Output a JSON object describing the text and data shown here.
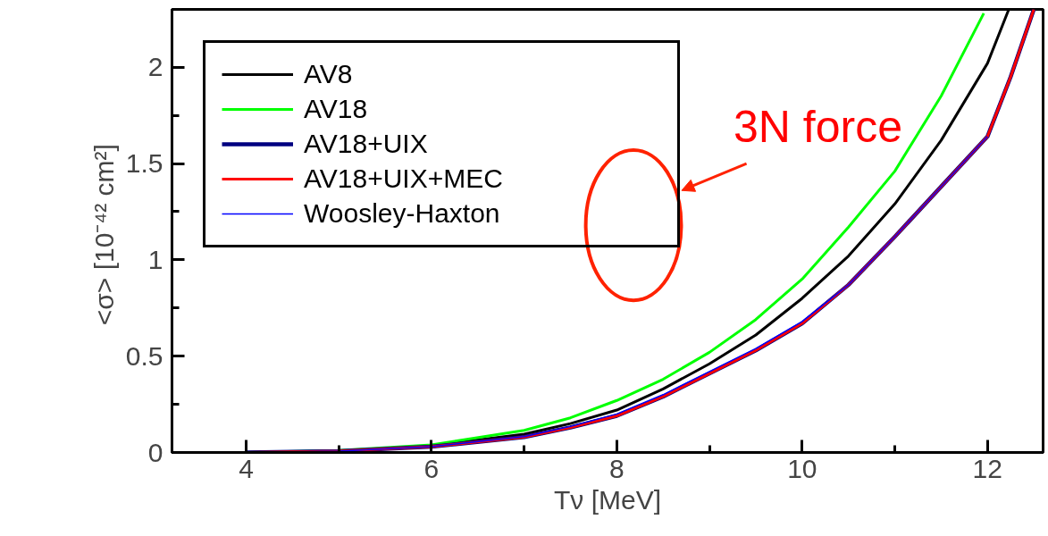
{
  "chart_data": {
    "type": "line",
    "xlabel": "Tν [MeV]",
    "ylabel": "<σ>  [10⁻⁴² cm²]",
    "xlim": [
      3.2,
      12.6
    ],
    "ylim": [
      0,
      2.3
    ],
    "xticks": [
      4,
      {
        "value": 5,
        "label": null
      },
      6,
      {
        "value": 7,
        "label": null
      },
      8,
      {
        "value": 9,
        "label": null
      },
      10,
      {
        "value": 11,
        "label": null
      },
      12
    ],
    "yticks": [
      0,
      {
        "value": 0.25,
        "label": null
      },
      0.5,
      {
        "value": 0.75,
        "label": null
      },
      1,
      {
        "value": 1.25,
        "label": null
      },
      1.5,
      {
        "value": 1.75,
        "label": null
      },
      2
    ],
    "grid": false,
    "legend": "top left",
    "line_style": "solid",
    "marker": "none",
    "series": [
      {
        "name": "AV8",
        "color": "#000000",
        "x": [
          4,
          5,
          6,
          7,
          7.5,
          8,
          8.5,
          9,
          9.5,
          10,
          10.5,
          11,
          11.5,
          12,
          12.23
        ],
        "values": [
          0,
          0.008,
          0.035,
          0.095,
          0.15,
          0.22,
          0.33,
          0.46,
          0.61,
          0.8,
          1.02,
          1.29,
          1.62,
          2.02,
          2.3
        ]
      },
      {
        "name": "AV18",
        "color": "#00ff00",
        "x": [
          4,
          5,
          6,
          7,
          7.5,
          8,
          8.5,
          9,
          9.5,
          10,
          10.5,
          11,
          11.5,
          11.96
        ],
        "values": [
          0,
          0.01,
          0.04,
          0.115,
          0.18,
          0.27,
          0.38,
          0.52,
          0.69,
          0.9,
          1.17,
          1.46,
          1.85,
          2.28
        ]
      },
      {
        "name": "AV18+UIX",
        "color": "#000080",
        "x": [
          4,
          5,
          6,
          7,
          7.5,
          8,
          8.5,
          9,
          9.5,
          10,
          10.5,
          11,
          11.5,
          12,
          12.25,
          12.5
        ],
        "values": [
          0,
          0.007,
          0.03,
          0.08,
          0.13,
          0.19,
          0.29,
          0.41,
          0.53,
          0.67,
          0.87,
          1.12,
          1.38,
          1.64,
          1.95,
          2.3
        ]
      },
      {
        "name": "AV18+UIX+MEC",
        "color": "#ff0000",
        "x": [
          4,
          5,
          6,
          7,
          7.5,
          8,
          8.5,
          9,
          9.5,
          10,
          10.5,
          11,
          11.5,
          12,
          12.25,
          12.5
        ],
        "values": [
          0,
          0.007,
          0.03,
          0.08,
          0.13,
          0.19,
          0.29,
          0.41,
          0.53,
          0.67,
          0.87,
          1.12,
          1.38,
          1.64,
          1.95,
          2.3
        ]
      },
      {
        "name": "Woosley-Haxton",
        "color": "#0000ff",
        "x": [
          4,
          5,
          6,
          7,
          7.5,
          8,
          8.5,
          9,
          9.5,
          10,
          10.5,
          11,
          11.5,
          12
        ],
        "values": [
          0,
          0.007,
          0.03,
          0.082,
          0.135,
          0.2,
          0.3,
          0.42,
          0.54,
          0.68,
          0.87,
          1.12,
          1.38,
          1.64
        ]
      }
    ],
    "annotations": [
      "3N force"
    ]
  }
}
